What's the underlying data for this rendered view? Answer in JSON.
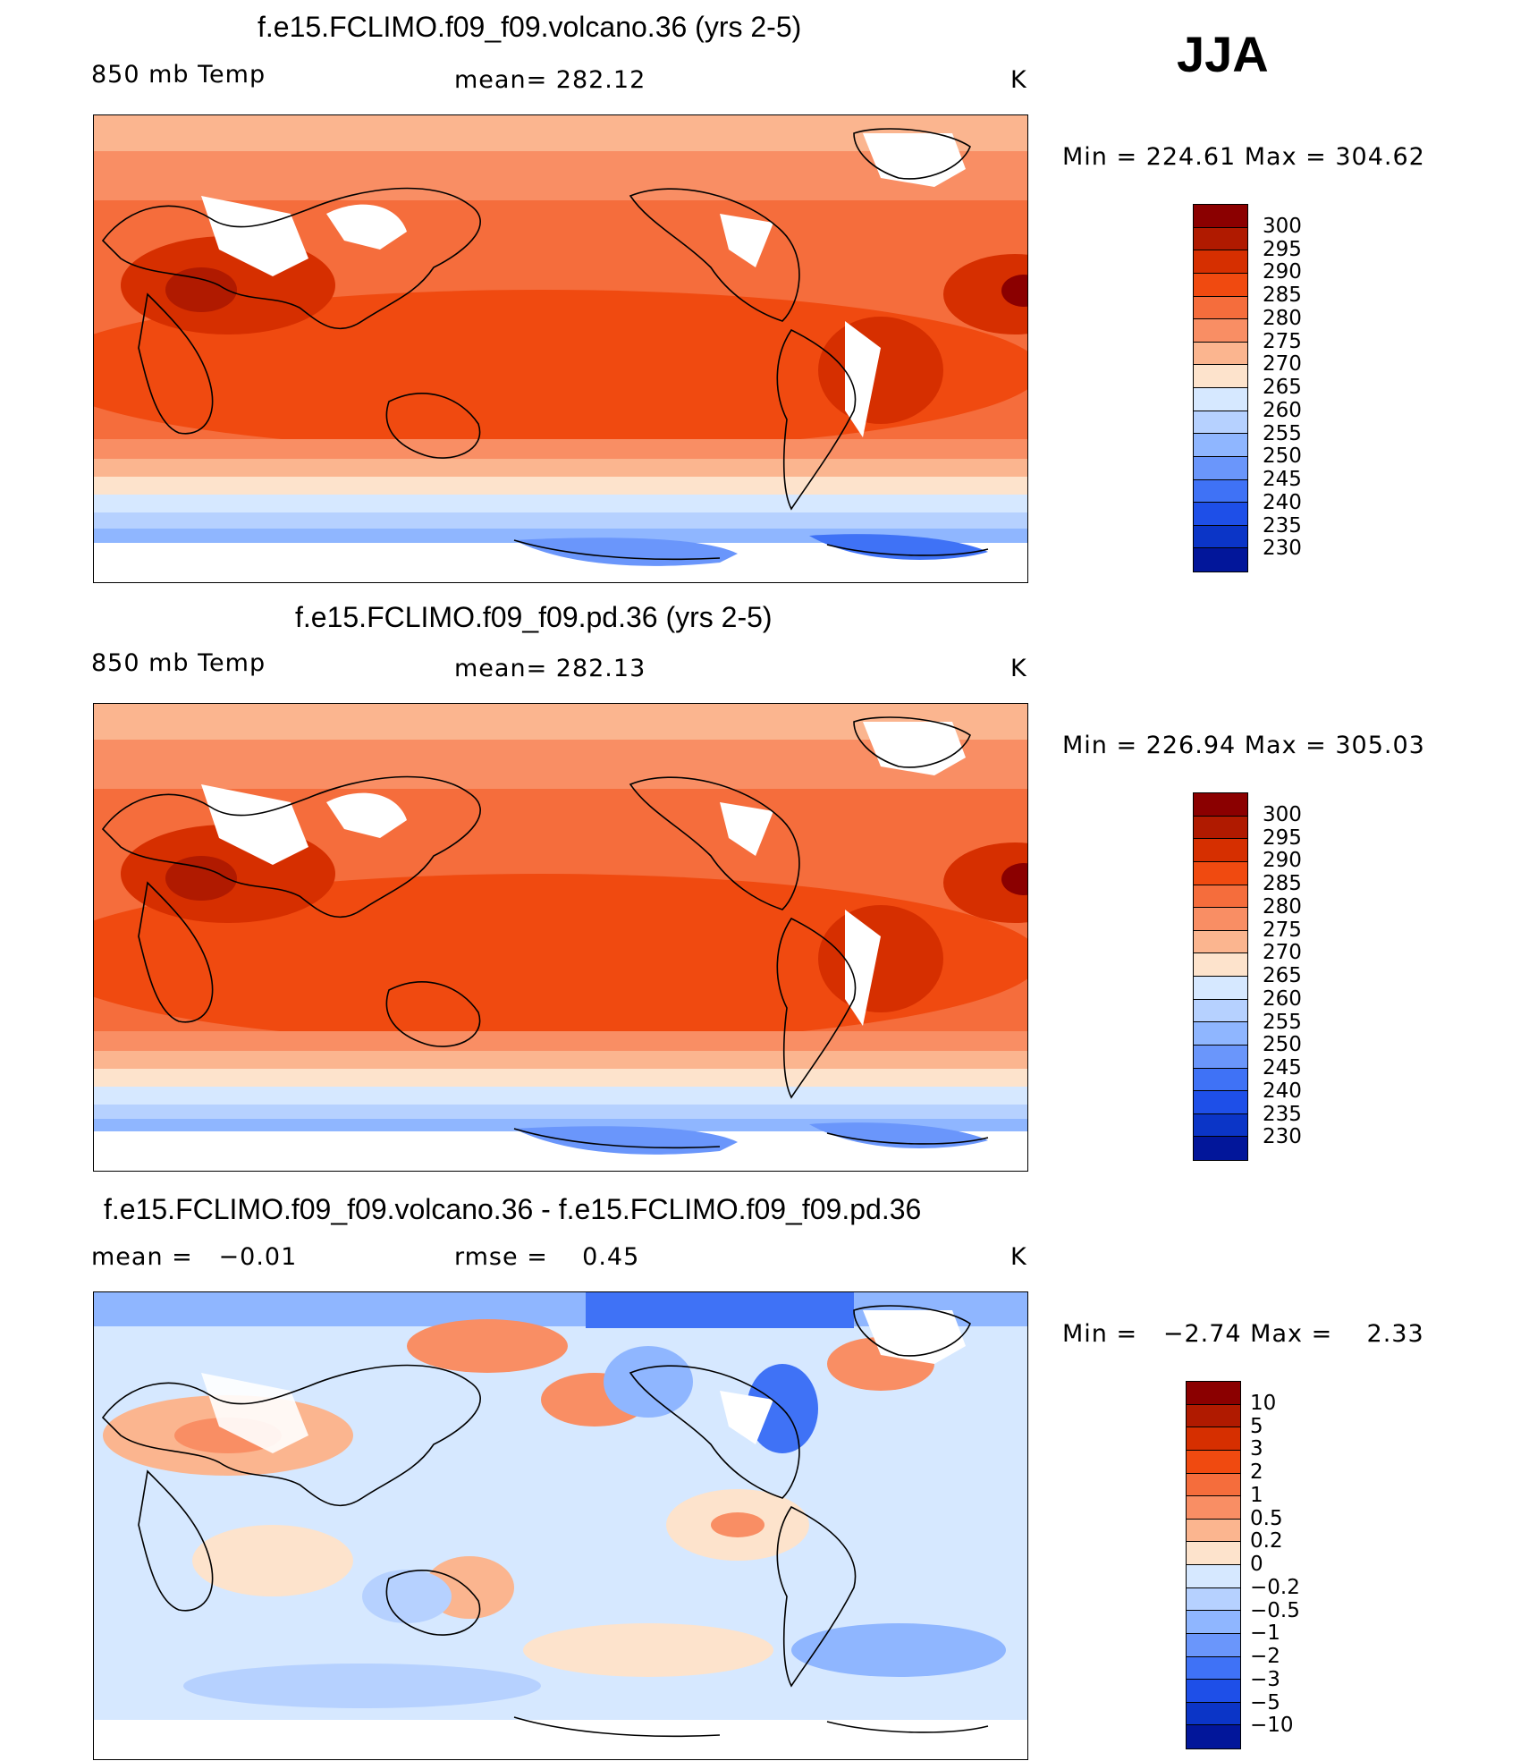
{
  "season": "JJA",
  "panels": [
    {
      "title": "f.e15.FCLIMO.f09_f09.volcano.36 (yrs 2-5)",
      "left_label": "850 mb Temp",
      "center_label": "mean= 282.12",
      "units": "K",
      "minmax": "Min = 224.61 Max = 304.62",
      "colorbar_labels": [
        "300",
        "295",
        "290",
        "285",
        "280",
        "275",
        "270",
        "265",
        "260",
        "255",
        "250",
        "245",
        "240",
        "235",
        "230"
      ],
      "colorbar_colors": [
        "#8b0000",
        "#b01a00",
        "#d62f00",
        "#f04a10",
        "#f56d3c",
        "#f98e64",
        "#fbb58f",
        "#fde3cc",
        "#d6e8ff",
        "#b6d1ff",
        "#8fb6ff",
        "#6a96fb",
        "#3f72f6",
        "#1e4fe8",
        "#0b35c7",
        "#02169a"
      ]
    },
    {
      "title": "f.e15.FCLIMO.f09_f09.pd.36 (yrs 2-5)",
      "left_label": "850 mb Temp",
      "center_label": "mean= 282.13",
      "units": "K",
      "minmax": "Min = 226.94 Max = 305.03",
      "colorbar_labels": [
        "300",
        "295",
        "290",
        "285",
        "280",
        "275",
        "270",
        "265",
        "260",
        "255",
        "250",
        "245",
        "240",
        "235",
        "230"
      ],
      "colorbar_colors": [
        "#8b0000",
        "#b01a00",
        "#d62f00",
        "#f04a10",
        "#f56d3c",
        "#f98e64",
        "#fbb58f",
        "#fde3cc",
        "#d6e8ff",
        "#b6d1ff",
        "#8fb6ff",
        "#6a96fb",
        "#3f72f6",
        "#1e4fe8",
        "#0b35c7",
        "#02169a"
      ]
    },
    {
      "title": "f.e15.FCLIMO.f09_f09.volcano.36 - f.e15.FCLIMO.f09_f09.pd.36",
      "left_label": "mean =   −0.01",
      "center_label": "rmse =    0.45",
      "units": "K",
      "minmax": "Min =   −2.74 Max =    2.33",
      "colorbar_labels": [
        "10",
        "5",
        "3",
        "2",
        "1",
        "0.5",
        "0.2",
        "0",
        "−0.2",
        "−0.5",
        "−1",
        "−2",
        "−3",
        "−5",
        "−10"
      ],
      "colorbar_colors": [
        "#8b0000",
        "#b01a00",
        "#d62f00",
        "#f04a10",
        "#f56d3c",
        "#f98e64",
        "#fbb58f",
        "#fde3cc",
        "#d6e8ff",
        "#b6d1ff",
        "#8fb6ff",
        "#6a96fb",
        "#3f72f6",
        "#1e4fe8",
        "#0b35c7",
        "#02169a"
      ]
    }
  ]
}
